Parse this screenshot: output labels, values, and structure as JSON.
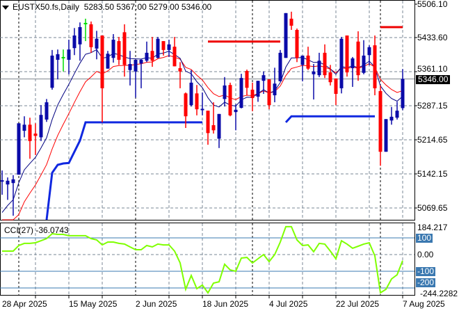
{
  "header": {
    "symbol": "EUSTX50.fs,Daily",
    "ohlc": "5283.50 5367.00 5279.00 5346.00"
  },
  "cci": {
    "label": "CCI(27)",
    "value": "-36.0743",
    "axis_labels": [
      "184.217",
      "100",
      "0.00",
      "-100",
      "-200",
      "-244.2282"
    ]
  },
  "price_axis": {
    "labels": [
      "5506.10",
      "5433.60",
      "5361.10",
      "5287.15",
      "5214.65",
      "5142.15",
      "5069.65"
    ],
    "current": "5346.00"
  },
  "date_axis": {
    "labels": [
      "28 Apr 2025",
      "15 May 2025",
      "2 Jun 2025",
      "18 Jun 2025",
      "4 Jul 2025",
      "22 Jul 2025",
      "7 Aug 2025"
    ]
  },
  "colors": {
    "bull": "#0a0aa8",
    "bear": "#ff0000",
    "doji": "#00dd00",
    "fast_ma": "#000080",
    "slow_ma": "#ff0000",
    "support": "#1028e0",
    "resistance": "#ee0000",
    "cci_line": "#7fff00",
    "cci_levels": "#3a78b0"
  },
  "chart_data": {
    "type": "candlestick",
    "ylim": [
      5040,
      5515
    ],
    "cci_ylim": [
      -250,
      200
    ],
    "ohlc": [
      [
        5128,
        5150,
        5098,
        5129
      ],
      [
        5120,
        5135,
        5087,
        5128
      ],
      [
        5123,
        5140,
        5053,
        5131
      ],
      [
        5141,
        5251,
        5141,
        5251
      ],
      [
        5235,
        5266,
        5221,
        5248
      ],
      [
        5248,
        5263,
        5175,
        5213
      ],
      [
        5229,
        5251,
        5183,
        5224
      ],
      [
        5221,
        5290,
        5213,
        5269
      ],
      [
        5259,
        5303,
        5254,
        5296
      ],
      [
        5327,
        5408,
        5323,
        5396
      ],
      [
        5387,
        5409,
        5345,
        5399
      ],
      [
        5393,
        5409,
        5362,
        5393
      ],
      [
        5387,
        5430,
        5356,
        5409
      ],
      [
        5412,
        5455,
        5397,
        5439
      ],
      [
        5420,
        5467,
        5385,
        5457
      ],
      [
        5466,
        5475,
        5427,
        5466
      ],
      [
        5463,
        5469,
        5402,
        5414
      ],
      [
        5411,
        5449,
        5388,
        5432
      ],
      [
        5439,
        5439,
        5253,
        5326
      ],
      [
        5368,
        5406,
        5368,
        5400
      ],
      [
        5391,
        5442,
        5381,
        5430
      ],
      [
        5427,
        5436,
        5376,
        5387
      ],
      [
        5446,
        5463,
        5351,
        5376
      ],
      [
        5365,
        5406,
        5332,
        5378
      ],
      [
        5362,
        5387,
        5306,
        5387
      ],
      [
        5379,
        5388,
        5326,
        5387
      ],
      [
        5385,
        5426,
        5382,
        5402
      ],
      [
        5406,
        5436,
        5372,
        5385
      ],
      [
        5391,
        5436,
        5390,
        5432
      ],
      [
        5427,
        5427,
        5396,
        5408
      ],
      [
        5408,
        5430,
        5393,
        5420
      ],
      [
        5415,
        5436,
        5373,
        5373
      ],
      [
        5369,
        5382,
        5326,
        5362
      ],
      [
        5315,
        5317,
        5241,
        5266
      ],
      [
        5290,
        5365,
        5287,
        5338
      ],
      [
        5315,
        5333,
        5268,
        5281
      ],
      [
        5281,
        5317,
        5268,
        5282
      ],
      [
        5278,
        5278,
        5205,
        5230
      ],
      [
        5247,
        5296,
        5229,
        5236
      ],
      [
        5218,
        5271,
        5198,
        5271
      ],
      [
        5303,
        5350,
        5287,
        5332
      ],
      [
        5333,
        5338,
        5266,
        5268
      ],
      [
        5275,
        5292,
        5236,
        5280
      ],
      [
        5284,
        5357,
        5283,
        5348
      ],
      [
        5363,
        5366,
        5311,
        5327
      ],
      [
        5323,
        5338,
        5277,
        5305
      ],
      [
        5308,
        5342,
        5297,
        5342
      ],
      [
        5342,
        5362,
        5314,
        5354
      ],
      [
        5345,
        5345,
        5281,
        5290
      ],
      [
        5311,
        5370,
        5296,
        5336
      ],
      [
        5341,
        5408,
        5341,
        5402
      ],
      [
        5391,
        5487,
        5391,
        5487
      ],
      [
        5475,
        5490,
        5451,
        5460
      ],
      [
        5451,
        5454,
        5382,
        5391
      ],
      [
        5376,
        5396,
        5341,
        5396
      ],
      [
        5396,
        5415,
        5365,
        5368
      ],
      [
        5356,
        5378,
        5302,
        5362
      ],
      [
        5354,
        5402,
        5350,
        5385
      ],
      [
        5402,
        5420,
        5348,
        5354
      ],
      [
        5360,
        5376,
        5332,
        5339
      ],
      [
        5347,
        5347,
        5290,
        5314
      ],
      [
        5326,
        5436,
        5315,
        5432
      ],
      [
        5439,
        5439,
        5351,
        5360
      ],
      [
        5369,
        5393,
        5329,
        5390
      ],
      [
        5426,
        5448,
        5342,
        5354
      ],
      [
        5359,
        5429,
        5356,
        5396
      ],
      [
        5397,
        5418,
        5375,
        5414
      ],
      [
        5418,
        5439,
        5311,
        5326
      ],
      [
        5320,
        5332,
        5160,
        5190
      ],
      [
        5190,
        5260,
        5190,
        5260
      ],
      [
        5257,
        5286,
        5248,
        5265
      ],
      [
        5263,
        5297,
        5259,
        5278
      ],
      [
        5283.5,
        5367,
        5279,
        5346
      ]
    ],
    "cci": [
      21,
      21,
      21,
      54,
      67,
      67,
      71,
      83,
      96,
      125,
      121,
      121,
      113,
      113,
      113,
      113,
      96,
      88,
      58,
      75,
      75,
      67,
      63,
      46,
      29,
      29,
      54,
      46,
      63,
      58,
      58,
      21,
      -50,
      -208,
      -125,
      -204,
      -183,
      -229,
      -171,
      -163,
      -58,
      -92,
      -100,
      -21,
      -17,
      -50,
      -25,
      0,
      -42,
      0,
      75,
      167,
      167,
      88,
      54,
      58,
      17,
      67,
      63,
      21,
      -25,
      83,
      63,
      38,
      50,
      63,
      71,
      -8,
      -229,
      -208,
      -146,
      -121,
      -36
    ],
    "levels": [
      {
        "kind": "support",
        "from": 9,
        "to": 37,
        "values": [
          5044,
          5145,
          5162,
          5165,
          5166,
          5190,
          5214,
          5253
        ]
      },
      {
        "kind": "resistance",
        "from": 38,
        "to": 51,
        "values": [
          5426
        ]
      },
      {
        "kind": "support",
        "from": 52,
        "to": 68,
        "values": [
          5253,
          5266
        ]
      },
      {
        "kind": "resistance",
        "from": 69,
        "to": 73,
        "values": [
          5457
        ]
      }
    ],
    "cci_levels": [
      100,
      0,
      -100,
      -200
    ],
    "current_price": 5346
  }
}
